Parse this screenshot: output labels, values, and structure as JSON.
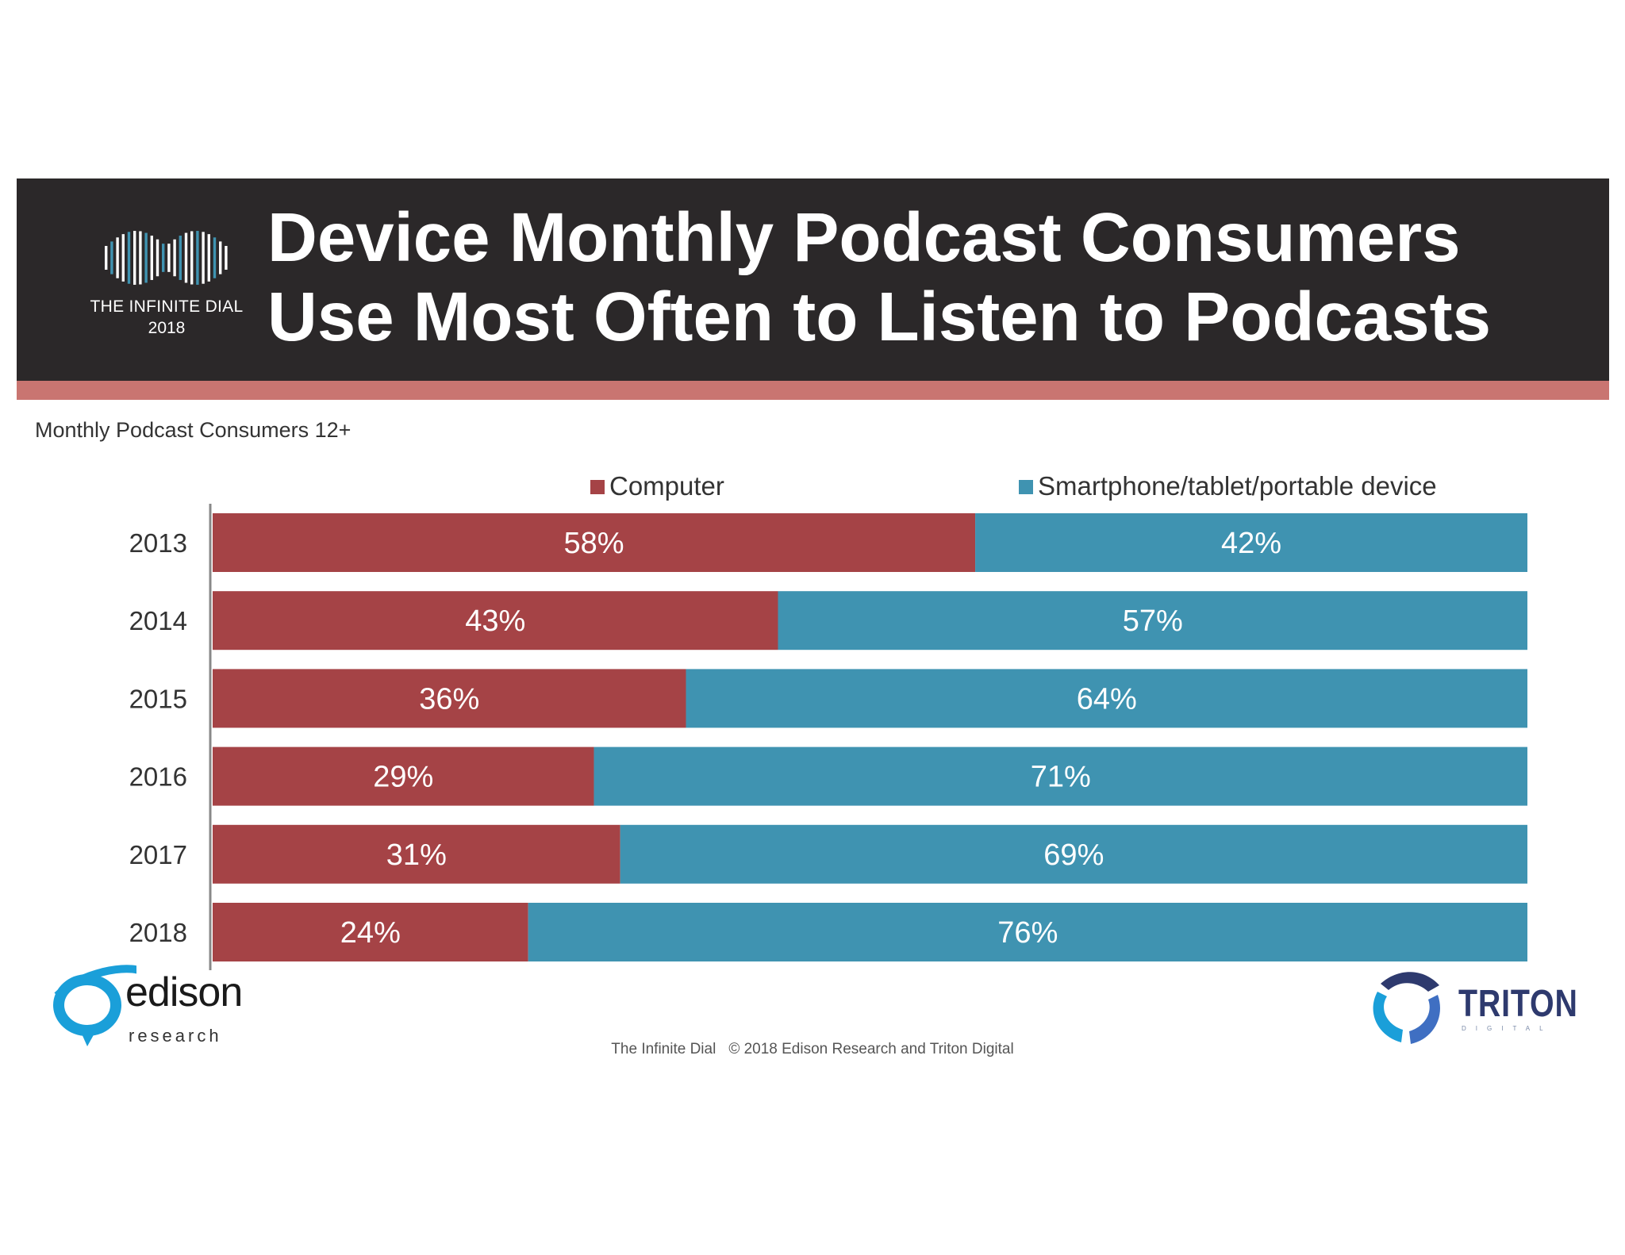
{
  "header": {
    "title": "Device Monthly Podcast Consumers Use Most Often to Listen to Podcasts",
    "brand_line1": "THE INFINITE DIAL",
    "brand_line2": "2018"
  },
  "subtitle": "Monthly Podcast Consumers 12+",
  "footer": {
    "left": "The Infinite Dial",
    "right": "© 2018 Edison Research and Triton Digital"
  },
  "logos": {
    "edison_word": "edison",
    "edison_sub": "research",
    "triton_word": "TRITON",
    "triton_sub": "DIGITAL"
  },
  "colors": {
    "computer": "#a54346",
    "smartphone": "#3f93b1",
    "header_bg": "#2b2829",
    "stripe": "#c97571"
  },
  "chart_data": {
    "type": "bar",
    "orientation": "horizontal",
    "stacked": true,
    "categories": [
      "2013",
      "2014",
      "2015",
      "2016",
      "2017",
      "2018"
    ],
    "series": [
      {
        "name": "Computer",
        "values": [
          58,
          43,
          36,
          29,
          31,
          24
        ]
      },
      {
        "name": "Smartphone/tablet/portable device",
        "values": [
          42,
          57,
          64,
          71,
          69,
          76
        ]
      }
    ],
    "data_labels": [
      [
        "58%",
        "43%",
        "36%",
        "29%",
        "31%",
        "24%"
      ],
      [
        "42%",
        "57%",
        "64%",
        "71%",
        "69%",
        "76%"
      ]
    ],
    "xlim": [
      0,
      100
    ],
    "legend_position": "top",
    "grid": false
  }
}
